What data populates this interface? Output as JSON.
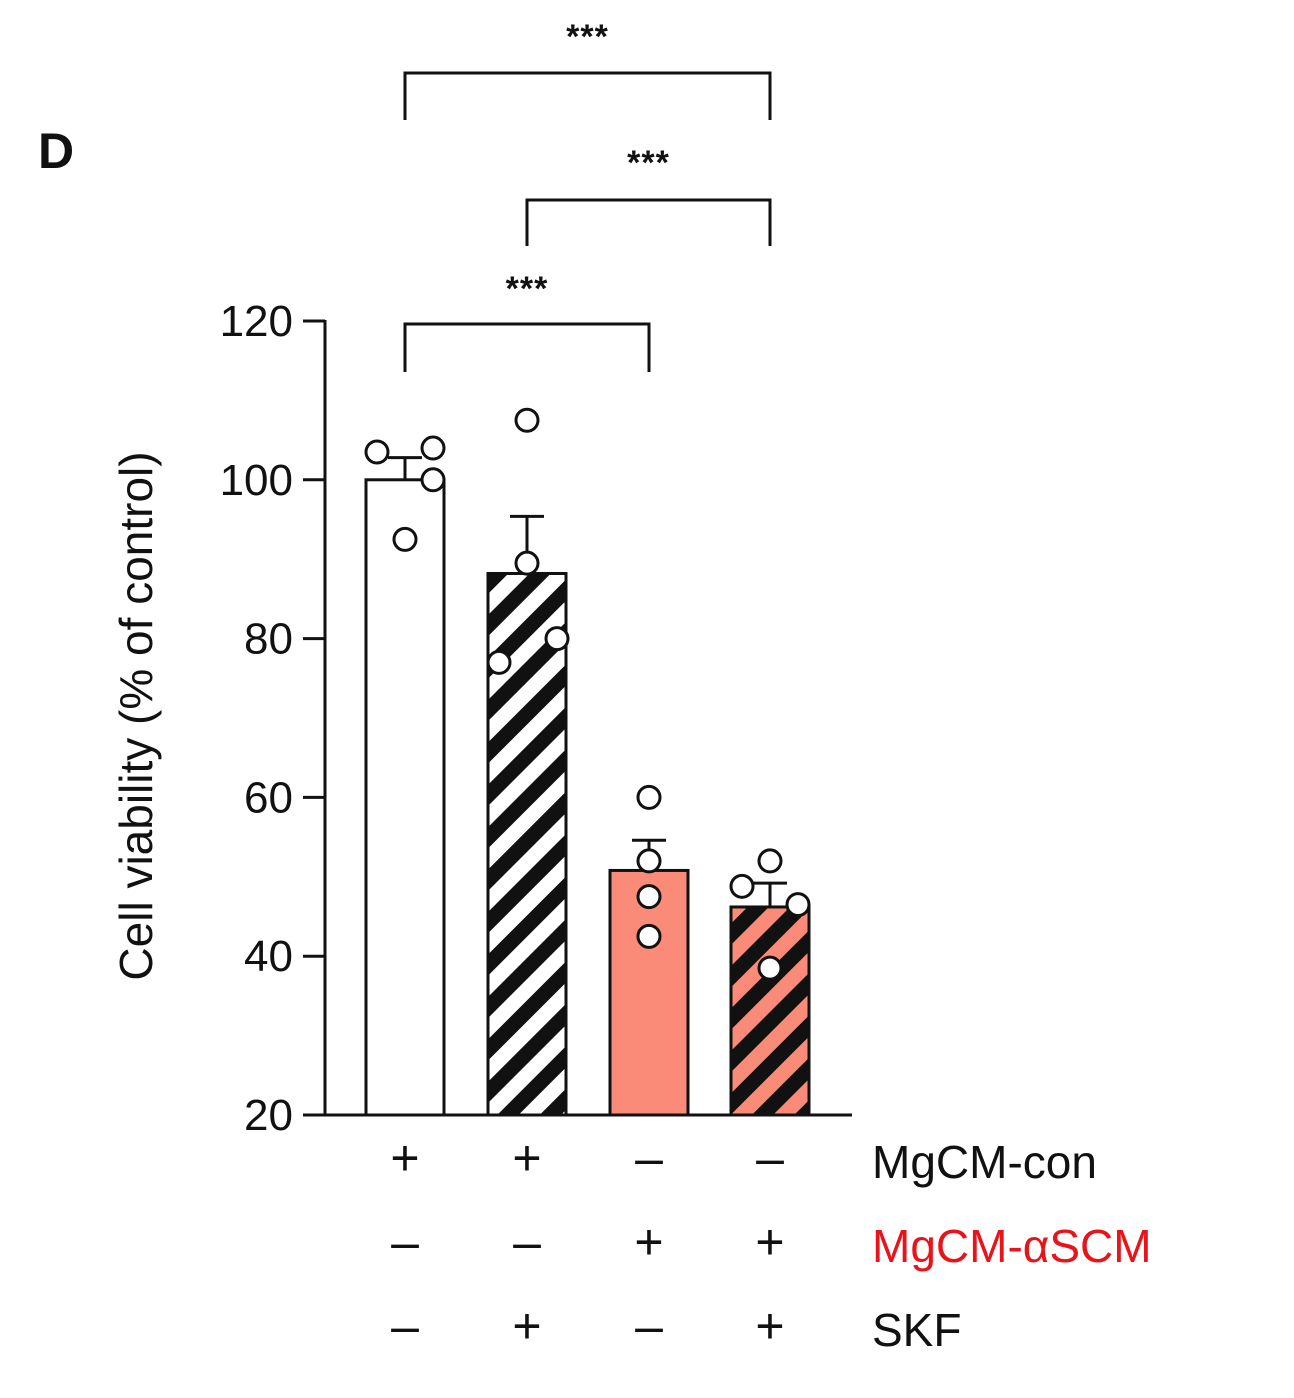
{
  "panel_label": "D",
  "chart_data": {
    "type": "bar",
    "ylabel": "Cell viability (% of control)",
    "ylim": [
      20,
      120
    ],
    "yticks": [
      20,
      40,
      60,
      80,
      100,
      120
    ],
    "bars": [
      {
        "mean": 100,
        "sem": 2.8,
        "points": [
          103.5,
          104,
          100,
          92.5
        ],
        "fill": "#ffffff",
        "hatch": "none"
      },
      {
        "mean": 88.2,
        "sem": 7.2,
        "points": [
          107.5,
          89.5,
          77,
          80
        ],
        "fill": "#ffffff",
        "hatch": "stripes"
      },
      {
        "mean": 50.8,
        "sem": 3.8,
        "points": [
          60,
          52,
          47.5,
          42.5
        ],
        "fill": "#f98b78",
        "hatch": "none"
      },
      {
        "mean": 46.2,
        "sem": 3.0,
        "points": [
          52,
          48.8,
          46.5,
          38.5
        ],
        "fill": "#f98b78",
        "hatch": "stripes"
      }
    ],
    "significance": [
      {
        "from": 0,
        "to": 3,
        "label": "***"
      },
      {
        "from": 1,
        "to": 3,
        "label": "***"
      },
      {
        "from": 0,
        "to": 2,
        "label": "***"
      }
    ],
    "conditions": [
      {
        "label": "MgCM-con",
        "color": "#111111",
        "signs": [
          "+",
          "+",
          "–",
          "–"
        ]
      },
      {
        "label": "MgCM-αSCM",
        "color": "#e8141c",
        "signs": [
          "–",
          "–",
          "+",
          "+"
        ]
      },
      {
        "label": "SKF",
        "color": "#111111",
        "signs": [
          "–",
          "+",
          "–",
          "+"
        ]
      }
    ]
  }
}
